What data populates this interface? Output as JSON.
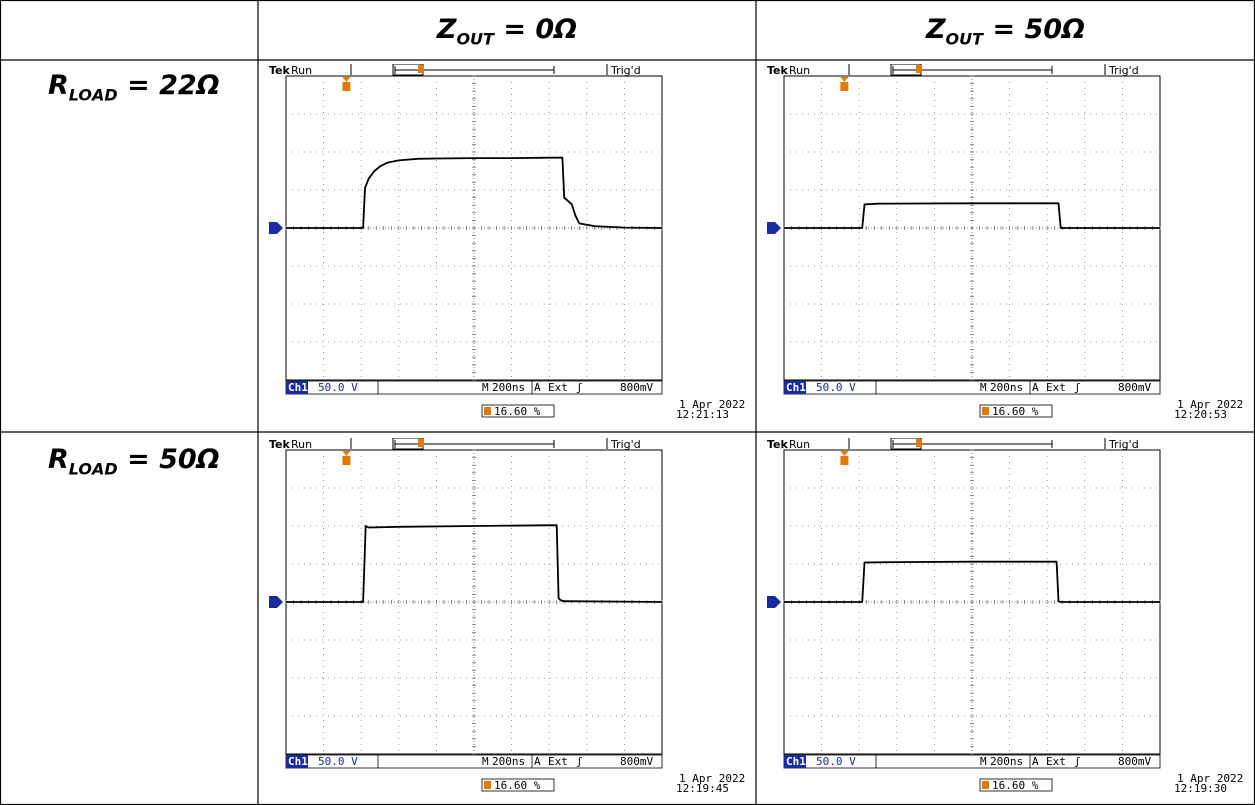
{
  "columns": [
    {
      "main": "Z",
      "sub": "OUT",
      "rest": " = 0Ω"
    },
    {
      "main": "Z",
      "sub": "OUT",
      "rest": " = 50Ω"
    }
  ],
  "rows": [
    {
      "main": "R",
      "sub": "LOAD",
      "rest": " = 22Ω"
    },
    {
      "main": "R",
      "sub": "LOAD",
      "rest": " = 50Ω"
    }
  ],
  "scope_common": {
    "brand": "Tek",
    "run": "Run",
    "trig": "Trig'd",
    "channel": "Ch1",
    "volts_div": "50.0 V",
    "m_label": "M",
    "timebase": "200ns",
    "a_label": "A",
    "trigger_source": "Ext",
    "trigger_level": "800mV",
    "trigger_pos": "16.60 %",
    "date": "1 Apr 2022"
  },
  "colors": {
    "trace": "#000000",
    "marker": "#e07a00",
    "ch1": "#1a2aa0",
    "grid": "#808080"
  },
  "chart_data": [
    {
      "type": "line",
      "row": 0,
      "col": 0,
      "time": "12:21:13",
      "x_unit": "div",
      "y_unit": "div",
      "xlim": [
        0,
        10
      ],
      "ylim": [
        -4,
        4
      ],
      "x": [
        0,
        2.05,
        2.1,
        2.2,
        2.35,
        2.5,
        2.7,
        3.0,
        3.5,
        4.0,
        5.0,
        6.0,
        7.0,
        7.35,
        7.4,
        7.6,
        7.7,
        7.8,
        8.2,
        8.6,
        9.0,
        10
      ],
      "y": [
        0,
        0,
        1.05,
        1.3,
        1.5,
        1.62,
        1.72,
        1.78,
        1.82,
        1.83,
        1.84,
        1.84,
        1.85,
        1.85,
        0.8,
        0.62,
        0.32,
        0.12,
        0.05,
        0.03,
        0.01,
        0
      ]
    },
    {
      "type": "line",
      "row": 0,
      "col": 1,
      "time": "12:20:53",
      "x_unit": "div",
      "y_unit": "div",
      "xlim": [
        0,
        10
      ],
      "ylim": [
        -4,
        4
      ],
      "x": [
        0,
        2.08,
        2.14,
        2.5,
        5.0,
        7.3,
        7.36,
        7.42,
        10
      ],
      "y": [
        0,
        0,
        0.62,
        0.64,
        0.65,
        0.65,
        0,
        0,
        0
      ]
    },
    {
      "type": "line",
      "row": 1,
      "col": 0,
      "time": "12:19:45",
      "x_unit": "div",
      "y_unit": "div",
      "xlim": [
        0,
        10
      ],
      "ylim": [
        -4,
        4
      ],
      "x": [
        0,
        2.05,
        2.12,
        2.2,
        3.0,
        5.0,
        7.2,
        7.25,
        7.3,
        7.4,
        10
      ],
      "y": [
        0,
        0,
        2.0,
        1.96,
        1.98,
        2.0,
        2.02,
        0.1,
        0.05,
        0.02,
        0
      ]
    },
    {
      "type": "line",
      "row": 1,
      "col": 1,
      "time": "12:19:30",
      "x_unit": "div",
      "y_unit": "div",
      "xlim": [
        0,
        10
      ],
      "ylim": [
        -4,
        4
      ],
      "x": [
        0,
        2.08,
        2.14,
        3.0,
        5.0,
        7.25,
        7.3,
        7.35,
        10
      ],
      "y": [
        0,
        0,
        1.04,
        1.05,
        1.06,
        1.06,
        0.02,
        0,
        0
      ]
    }
  ]
}
